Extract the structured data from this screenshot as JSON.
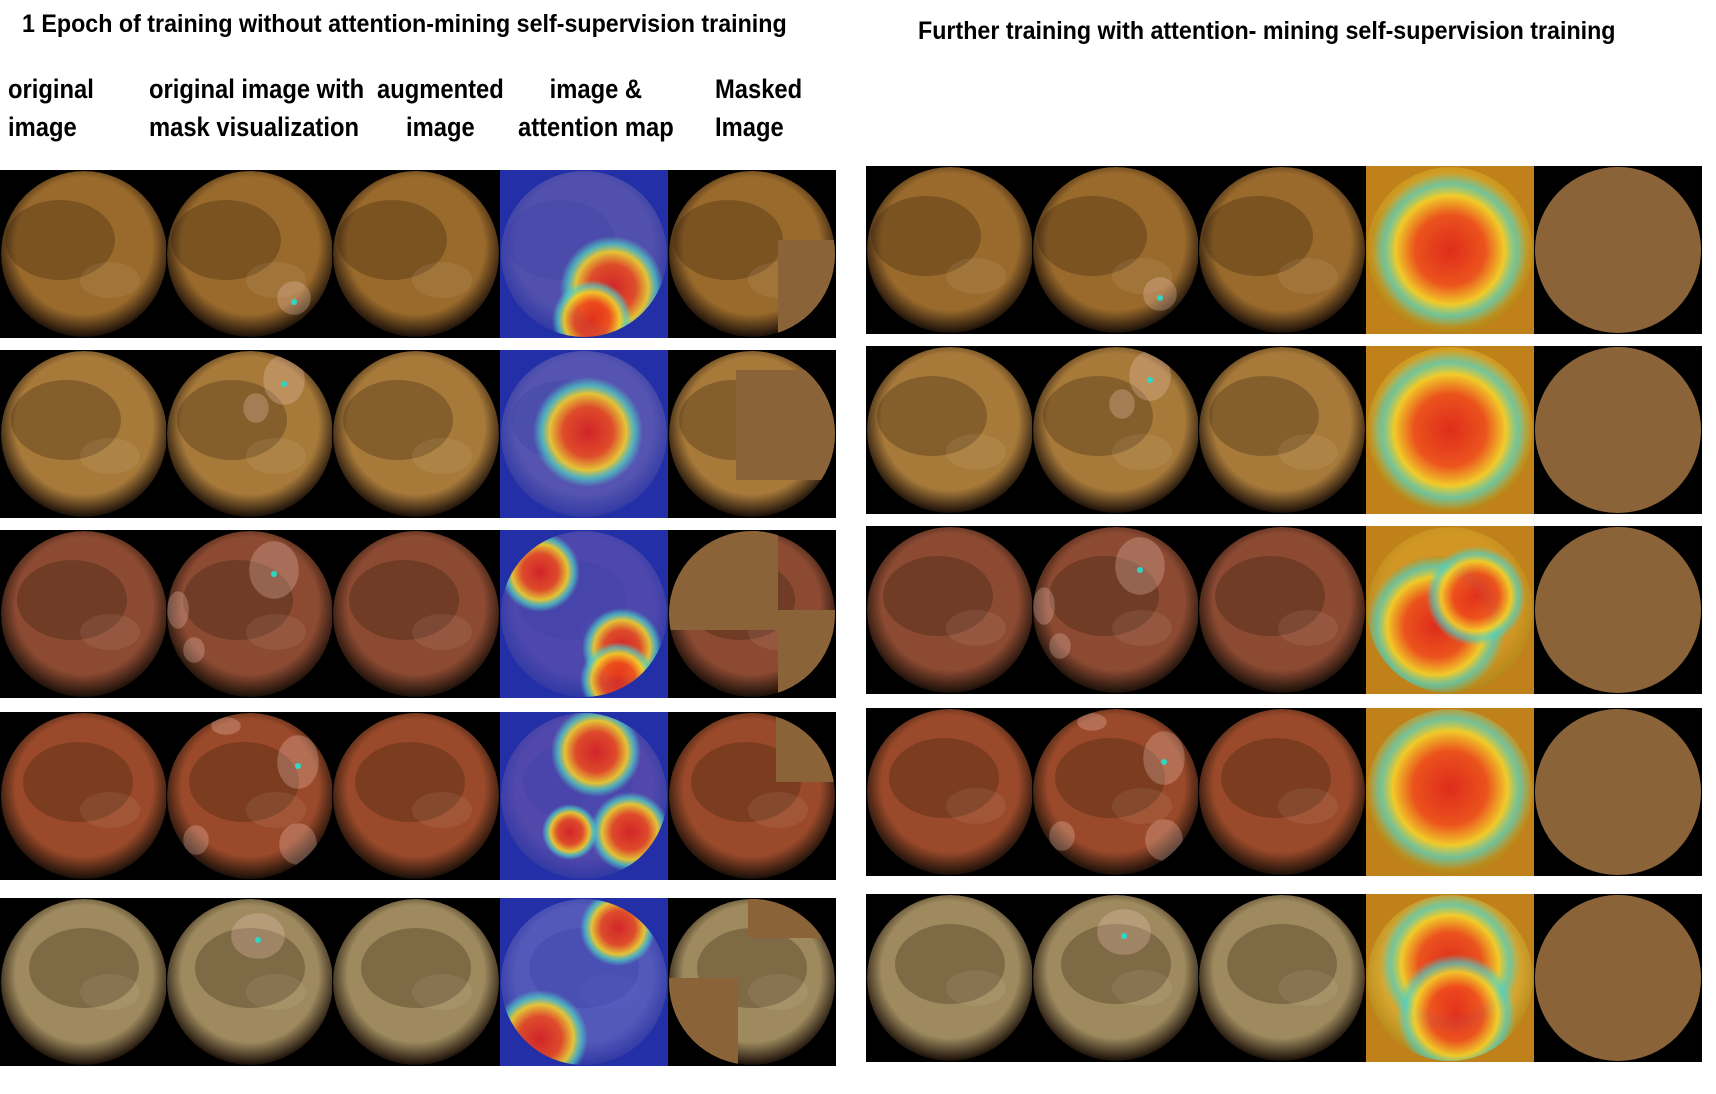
{
  "panels": {
    "left_title": "1 Epoch of training without attention-mining self-supervision training",
    "right_title": "Further training with  attention- mining self-supervision training"
  },
  "column_headers": [
    {
      "line1": "original",
      "line2": "image"
    },
    {
      "line1": "original image with",
      "line2": "mask visualization"
    },
    {
      "line1": "augmented",
      "line2": "image"
    },
    {
      "line1": "image &",
      "line2": "attention map"
    },
    {
      "line1": "Masked",
      "line2": "Image"
    }
  ],
  "colors": {
    "row_tissue": [
      "#9a6a2c",
      "#a87a3a",
      "#8c4a32",
      "#9a4a2a",
      "#9e8a5e"
    ],
    "mask_fill": "#8a6438",
    "lesion_outline": "#f4cdbf",
    "lesion_marker": "#2fd6c4"
  }
}
